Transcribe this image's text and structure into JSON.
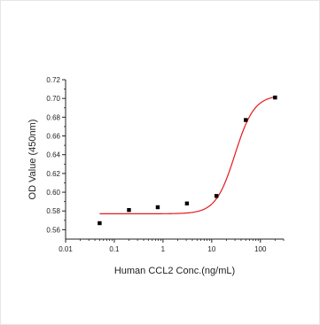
{
  "chart_data": {
    "type": "scatter",
    "xlabel": "Human CCL2 Conc.(ng/mL)",
    "ylabel": "OD Value (450nm)",
    "x_scale": "log",
    "xlim": [
      0.01,
      300
    ],
    "ylim": [
      0.55,
      0.72
    ],
    "x_ticks": [
      {
        "value": 0.01,
        "label": "0.01"
      },
      {
        "value": 0.1,
        "label": "0.1"
      },
      {
        "value": 1,
        "label": "1"
      },
      {
        "value": 10,
        "label": "10"
      },
      {
        "value": 100,
        "label": "100"
      }
    ],
    "y_ticks": [
      {
        "value": 0.56,
        "label": "0.56"
      },
      {
        "value": 0.58,
        "label": "0.58"
      },
      {
        "value": 0.6,
        "label": "0.60"
      },
      {
        "value": 0.62,
        "label": "0.62"
      },
      {
        "value": 0.64,
        "label": "0.64"
      },
      {
        "value": 0.66,
        "label": "0.66"
      },
      {
        "value": 0.68,
        "label": "0.68"
      },
      {
        "value": 0.7,
        "label": "0.70"
      },
      {
        "value": 0.72,
        "label": "0.72"
      }
    ],
    "series": [
      {
        "marker": "square",
        "color": "#000000",
        "points": [
          {
            "x": 0.05,
            "y": 0.567
          },
          {
            "x": 0.2,
            "y": 0.581
          },
          {
            "x": 0.78,
            "y": 0.584
          },
          {
            "x": 3.1,
            "y": 0.588
          },
          {
            "x": 12.5,
            "y": 0.596
          },
          {
            "x": 50,
            "y": 0.677
          },
          {
            "x": 200,
            "y": 0.701
          }
        ]
      }
    ],
    "fit_curve": {
      "type": "4PL",
      "color": "#e31a1c",
      "bottom": 0.577,
      "top": 0.7035,
      "ec50": 30,
      "hill": 2.2,
      "x_range": [
        0.05,
        200
      ]
    },
    "grid": false
  }
}
